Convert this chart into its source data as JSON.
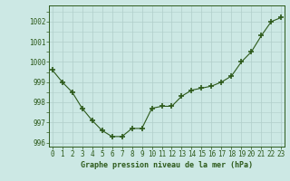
{
  "hours": [
    0,
    1,
    2,
    3,
    4,
    5,
    6,
    7,
    8,
    9,
    10,
    11,
    12,
    13,
    14,
    15,
    16,
    17,
    18,
    19,
    20,
    21,
    22,
    23
  ],
  "pressure": [
    999.6,
    999.0,
    998.5,
    997.7,
    997.1,
    996.6,
    996.3,
    996.3,
    996.7,
    996.7,
    997.7,
    997.8,
    997.8,
    998.3,
    998.6,
    998.7,
    998.8,
    999.0,
    999.3,
    1000.0,
    1000.5,
    1001.3,
    1002.0,
    1002.2
  ],
  "line_color": "#2d5a1b",
  "marker": "+",
  "marker_size": 4,
  "marker_lw": 1.2,
  "bg_color": "#cce8e4",
  "grid_color": "#b0ceca",
  "xlabel": "Graphe pression niveau de la mer (hPa)",
  "ylim": [
    995.8,
    1002.8
  ],
  "yticks": [
    996,
    997,
    998,
    999,
    1000,
    1001,
    1002
  ],
  "xlim": [
    -0.3,
    23.3
  ],
  "xticks": [
    0,
    1,
    2,
    3,
    4,
    5,
    6,
    7,
    8,
    9,
    10,
    11,
    12,
    13,
    14,
    15,
    16,
    17,
    18,
    19,
    20,
    21,
    22,
    23
  ],
  "xtick_labels": [
    "0",
    "1",
    "2",
    "3",
    "4",
    "5",
    "6",
    "7",
    "8",
    "9",
    "10",
    "11",
    "12",
    "13",
    "14",
    "15",
    "16",
    "17",
    "18",
    "19",
    "20",
    "21",
    "22",
    "23"
  ],
  "ytick_labels": [
    "996",
    "997",
    "998",
    "999",
    "1000",
    "1001",
    "1002"
  ],
  "tick_fontsize": 5.5,
  "xlabel_fontsize": 6.0,
  "line_width": 0.8
}
